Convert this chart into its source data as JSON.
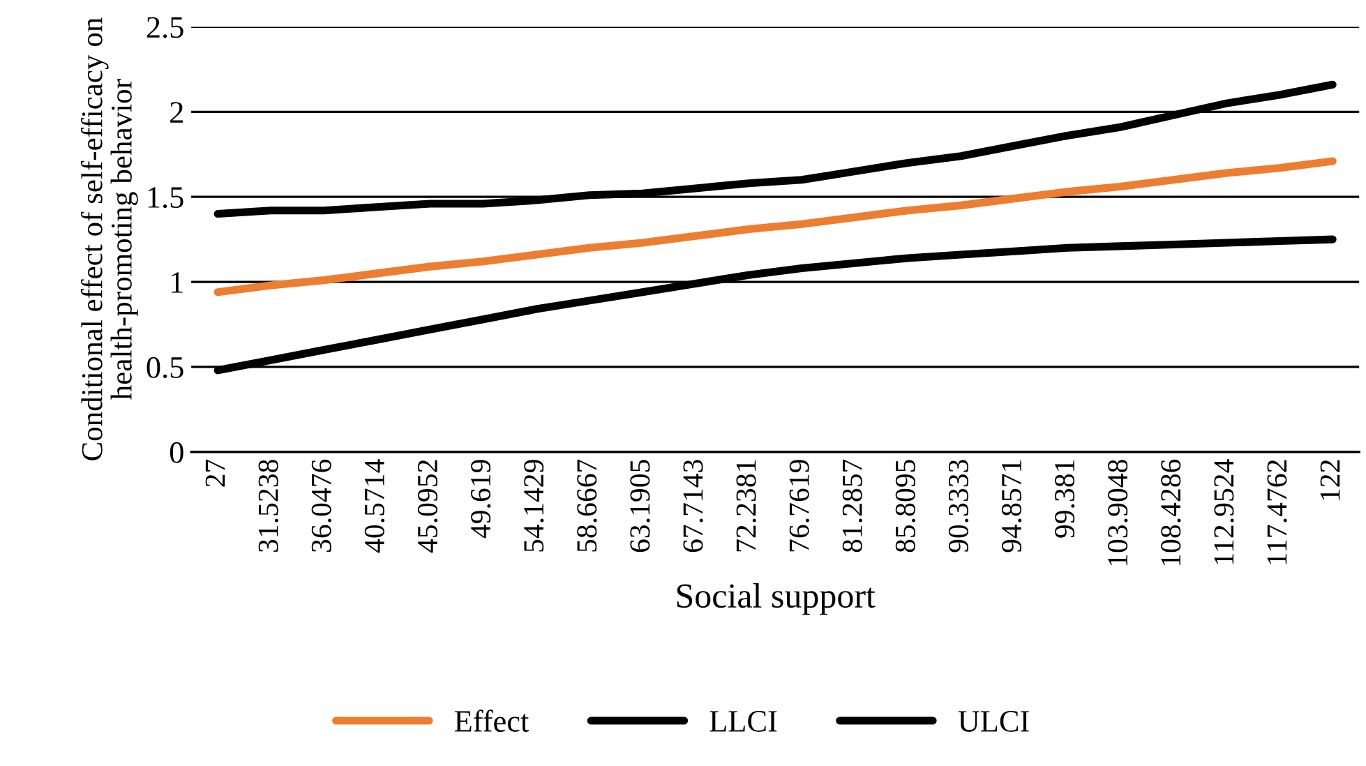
{
  "chart_data": {
    "type": "line",
    "xlabel": "Social support",
    "ylabel": "Conditional effect of self-efficacy on\nhealth-promoting behavior",
    "categories": [
      "27",
      "31.5238",
      "36.0476",
      "40.5714",
      "45.0952",
      "49.619",
      "54.1429",
      "58.6667",
      "63.1905",
      "67.7143",
      "72.2381",
      "76.7619",
      "81.2857",
      "85.8095",
      "90.3333",
      "94.8571",
      "99.381",
      "103.9048",
      "108.4286",
      "112.9524",
      "117.4762",
      "122"
    ],
    "series": [
      {
        "name": "Effect",
        "color": "#ed7d31",
        "values": [
          0.94,
          0.98,
          1.01,
          1.05,
          1.09,
          1.12,
          1.16,
          1.2,
          1.23,
          1.27,
          1.31,
          1.34,
          1.38,
          1.42,
          1.45,
          1.49,
          1.53,
          1.56,
          1.6,
          1.64,
          1.67,
          1.71
        ]
      },
      {
        "name": "LLCI",
        "color": "#000000",
        "values": [
          0.48,
          0.54,
          0.6,
          0.66,
          0.72,
          0.78,
          0.84,
          0.89,
          0.94,
          0.99,
          1.04,
          1.08,
          1.11,
          1.14,
          1.16,
          1.18,
          1.2,
          1.21,
          1.22,
          1.23,
          1.24,
          1.25
        ]
      },
      {
        "name": "ULCI",
        "color": "#000000",
        "values": [
          1.4,
          1.42,
          1.42,
          1.44,
          1.46,
          1.46,
          1.48,
          1.51,
          1.52,
          1.55,
          1.58,
          1.6,
          1.65,
          1.7,
          1.74,
          1.8,
          1.86,
          1.91,
          1.98,
          2.05,
          2.1,
          2.16
        ]
      }
    ],
    "ylim": [
      0,
      2.5
    ],
    "yticks": [
      0,
      0.5,
      1,
      1.5,
      2,
      2.5
    ],
    "grid": "y",
    "legend": "bottom"
  }
}
